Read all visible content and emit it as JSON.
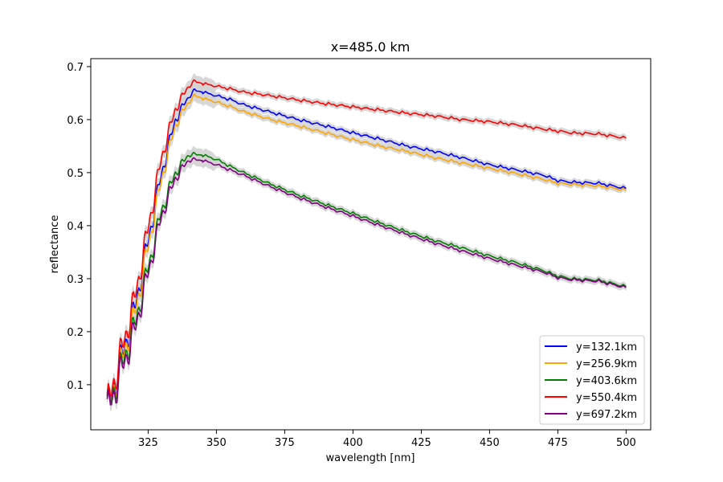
{
  "chart_data": {
    "type": "line",
    "title": "x=485.0 km",
    "xlabel": "wavelength [nm]",
    "ylabel": "reflectance",
    "xlim": [
      304,
      509
    ],
    "ylim": [
      0.015,
      0.715
    ],
    "xticks": [
      325,
      350,
      375,
      400,
      425,
      450,
      475,
      500
    ],
    "yticks": [
      0.1,
      0.2,
      0.3,
      0.4,
      0.5,
      0.6,
      0.7
    ],
    "grid": false,
    "legend_position": "lower-right",
    "uncertainty_band_color": "#d3d3d3",
    "series": [
      {
        "name": "y=132.1km",
        "color": "#0000ff",
        "x": [
          310,
          320,
          330,
          335,
          340,
          342,
          345,
          350,
          355,
          360,
          370,
          380,
          390,
          400,
          410,
          420,
          430,
          440,
          450,
          460,
          470,
          475,
          480,
          490,
          500
        ],
        "y": [
          0.05,
          0.24,
          0.5,
          0.6,
          0.645,
          0.655,
          0.652,
          0.645,
          0.638,
          0.628,
          0.614,
          0.6,
          0.588,
          0.575,
          0.563,
          0.55,
          0.54,
          0.528,
          0.515,
          0.505,
          0.495,
          0.485,
          0.482,
          0.48,
          0.47
        ]
      },
      {
        "name": "y=256.9km",
        "color": "#ffa500",
        "x": [
          310,
          320,
          330,
          335,
          340,
          342,
          345,
          350,
          355,
          360,
          370,
          380,
          390,
          400,
          410,
          420,
          430,
          440,
          450,
          460,
          470,
          475,
          480,
          490,
          500
        ],
        "y": [
          0.05,
          0.23,
          0.49,
          0.59,
          0.635,
          0.645,
          0.64,
          0.633,
          0.625,
          0.615,
          0.6,
          0.588,
          0.575,
          0.562,
          0.55,
          0.54,
          0.528,
          0.518,
          0.508,
          0.498,
          0.487,
          0.48,
          0.478,
          0.475,
          0.467
        ]
      },
      {
        "name": "y=403.6km",
        "color": "#008000",
        "x": [
          310,
          320,
          330,
          335,
          340,
          345,
          350,
          355,
          360,
          370,
          380,
          390,
          400,
          410,
          420,
          430,
          440,
          450,
          460,
          470,
          475,
          480,
          490,
          500
        ],
        "y": [
          0.05,
          0.21,
          0.43,
          0.5,
          0.535,
          0.533,
          0.525,
          0.512,
          0.5,
          0.478,
          0.458,
          0.44,
          0.423,
          0.405,
          0.388,
          0.372,
          0.358,
          0.343,
          0.33,
          0.315,
          0.305,
          0.3,
          0.297,
          0.285
        ]
      },
      {
        "name": "y=550.4km",
        "color": "#ff0000",
        "x": [
          310,
          320,
          330,
          335,
          340,
          342,
          345,
          350,
          355,
          360,
          370,
          380,
          390,
          400,
          410,
          420,
          430,
          440,
          450,
          460,
          470,
          480,
          490,
          500
        ],
        "y": [
          0.055,
          0.26,
          0.53,
          0.62,
          0.665,
          0.672,
          0.668,
          0.663,
          0.658,
          0.652,
          0.645,
          0.637,
          0.63,
          0.624,
          0.618,
          0.612,
          0.607,
          0.6,
          0.596,
          0.59,
          0.582,
          0.575,
          0.573,
          0.565
        ]
      },
      {
        "name": "y=697.2km",
        "color": "#800080",
        "x": [
          310,
          320,
          330,
          335,
          340,
          345,
          350,
          355,
          360,
          370,
          380,
          390,
          400,
          410,
          420,
          430,
          440,
          450,
          460,
          470,
          475,
          480,
          490,
          500
        ],
        "y": [
          0.045,
          0.2,
          0.42,
          0.49,
          0.525,
          0.523,
          0.515,
          0.505,
          0.495,
          0.473,
          0.453,
          0.435,
          0.418,
          0.4,
          0.383,
          0.367,
          0.352,
          0.338,
          0.325,
          0.312,
          0.302,
          0.298,
          0.295,
          0.283
        ]
      }
    ]
  }
}
